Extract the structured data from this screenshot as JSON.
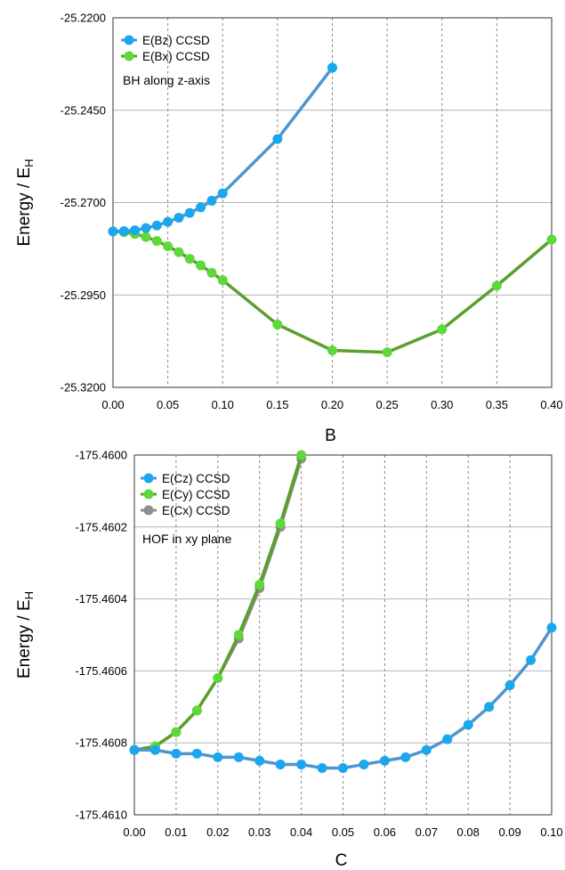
{
  "chart_data": [
    {
      "type": "line",
      "xlabel": "B",
      "ylabel": "Energy / E",
      "ylabel_sub": "H",
      "annotation": "BH along z-axis",
      "xlim": [
        0.0,
        0.4
      ],
      "ylim": [
        -25.32,
        -25.22
      ],
      "xticks": [
        "0.00",
        "0.05",
        "0.10",
        "0.15",
        "0.20",
        "0.25",
        "0.30",
        "0.35",
        "0.40"
      ],
      "yticks": [
        "-25.2200",
        "-25.2450",
        "-25.2700",
        "-25.2950",
        "-25.3200"
      ],
      "grid": "x dashed, y solid",
      "legend_position": "top-left",
      "series": [
        {
          "name": "E(Bz) CCSD",
          "color": "#1aa7ee",
          "line_color": "#4f96cf",
          "x": [
            0.0,
            0.01,
            0.02,
            0.03,
            0.04,
            0.05,
            0.06,
            0.07,
            0.08,
            0.09,
            0.1,
            0.15,
            0.2
          ],
          "y": [
            -25.2778,
            -25.2777,
            -25.2775,
            -25.2769,
            -25.2762,
            -25.2752,
            -25.2741,
            -25.2728,
            -25.2713,
            -25.2695,
            -25.2675,
            -25.2528,
            -25.2335
          ]
        },
        {
          "name": "E(Bx) CCSD",
          "color": "#5ed93a",
          "line_color": "#5aa02c",
          "x": [
            0.0,
            0.01,
            0.02,
            0.03,
            0.04,
            0.05,
            0.06,
            0.07,
            0.08,
            0.09,
            0.1,
            0.15,
            0.2,
            0.25,
            0.3,
            0.35,
            0.4
          ],
          "y": [
            -25.2778,
            -25.278,
            -25.2785,
            -25.2793,
            -25.2804,
            -25.2818,
            -25.2834,
            -25.2852,
            -25.287,
            -25.289,
            -25.291,
            -25.303,
            -25.31,
            -25.3105,
            -25.3043,
            -25.2925,
            -25.28
          ]
        }
      ]
    },
    {
      "type": "line",
      "xlabel": "C",
      "ylabel": "Energy / E",
      "ylabel_sub": "H",
      "annotation": "HOF in xy plane",
      "xlim": [
        0.0,
        0.1
      ],
      "ylim": [
        -175.461,
        -175.46
      ],
      "xticks": [
        "0.00",
        "0.01",
        "0.02",
        "0.03",
        "0.04",
        "0.05",
        "0.06",
        "0.07",
        "0.08",
        "0.09",
        "0.10"
      ],
      "yticks": [
        "-175.4600",
        "-175.4602",
        "-175.4604",
        "-175.4606",
        "-175.4608",
        "-175.4610"
      ],
      "grid": "x dashed, y solid",
      "legend_position": "top-left",
      "series": [
        {
          "name": "E(Cz) CCSD",
          "color": "#1aa7ee",
          "line_color": "#4f96cf",
          "x": [
            0.0,
            0.005,
            0.01,
            0.015,
            0.02,
            0.025,
            0.03,
            0.035,
            0.04,
            0.045,
            0.05,
            0.055,
            0.06,
            0.065,
            0.07,
            0.075,
            0.08,
            0.085,
            0.09,
            0.095,
            0.1
          ],
          "y": [
            -175.46082,
            -175.46082,
            -175.46083,
            -175.46083,
            -175.46084,
            -175.46084,
            -175.46085,
            -175.46086,
            -175.46086,
            -175.46087,
            -175.46087,
            -175.46086,
            -175.46085,
            -175.46084,
            -175.46082,
            -175.46079,
            -175.46075,
            -175.4607,
            -175.46064,
            -175.46057,
            -175.46048
          ]
        },
        {
          "name": "E(Cy) CCSD",
          "color": "#5ed93a",
          "line_color": "#5aa02c",
          "x": [
            0.0,
            0.005,
            0.01,
            0.015,
            0.02,
            0.025,
            0.03,
            0.035,
            0.04
          ],
          "y": [
            -175.46082,
            -175.46081,
            -175.46077,
            -175.46071,
            -175.46062,
            -175.4605,
            -175.46036,
            -175.46019,
            -175.46
          ]
        },
        {
          "name": "E(Cx) CCSD",
          "color": "#8f8f8f",
          "line_color": "#8c8c8c",
          "x": [
            0.0,
            0.005,
            0.01,
            0.015,
            0.02,
            0.025,
            0.03,
            0.035,
            0.04
          ],
          "y": [
            -175.46082,
            -175.46081,
            -175.46077,
            -175.46071,
            -175.46062,
            -175.46051,
            -175.46037,
            -175.4602,
            -175.46001
          ]
        }
      ]
    }
  ]
}
